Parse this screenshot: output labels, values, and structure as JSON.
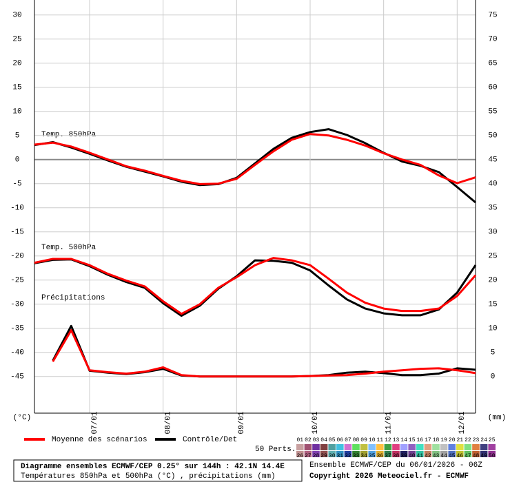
{
  "chart_data": {
    "type": "line",
    "annotations": [
      "Temp. 850hPa",
      "Temp. 500hPa",
      "Précipitations"
    ],
    "ylabel": "(°C)",
    "y2label": "(mm)",
    "x": [
      0,
      6,
      12,
      18,
      24,
      30,
      36,
      42,
      48,
      54,
      60,
      66,
      72,
      78,
      84,
      90,
      96,
      102,
      108,
      114,
      120,
      126,
      132,
      138,
      144
    ],
    "xlim": [
      0,
      144
    ],
    "xticks": [
      {
        "value": 18,
        "label": "07/01"
      },
      {
        "value": 42,
        "label": "08/01"
      },
      {
        "value": 66,
        "label": "09/01"
      },
      {
        "value": 90,
        "label": "10/01"
      },
      {
        "value": 114,
        "label": "11/01"
      },
      {
        "value": 138,
        "label": "12/01"
      }
    ],
    "ylim": [
      -52.6,
      33.1
    ],
    "yticks": [
      30,
      25,
      20,
      15,
      10,
      5,
      0,
      -5,
      -10,
      -15,
      -20,
      -25,
      -30,
      -35,
      -40,
      -45
    ],
    "y2lim": [
      -7.6,
      78.1
    ],
    "y2ticks": [
      75,
      70,
      65,
      60,
      55,
      50,
      45,
      40,
      35,
      30,
      25,
      20,
      15,
      10,
      5,
      0
    ],
    "grid": true,
    "legend": [
      {
        "name": "Moyenne des scénarios",
        "color": "#ff0000"
      },
      {
        "name": "Contrôle/Det",
        "color": "#000000"
      }
    ],
    "perturbations_title": "50 Perts.",
    "perturbations": [
      {
        "label": "01",
        "color": "#c8a0a0"
      },
      {
        "label": "02",
        "color": "#a05070"
      },
      {
        "label": "03",
        "color": "#7030a0"
      },
      {
        "label": "04",
        "color": "#804040"
      },
      {
        "label": "05",
        "color": "#50a0a0"
      },
      {
        "label": "06",
        "color": "#40c0e0"
      },
      {
        "label": "07",
        "color": "#d070d0"
      },
      {
        "label": "08",
        "color": "#60e060"
      },
      {
        "label": "09",
        "color": "#c0c040"
      },
      {
        "label": "10",
        "color": "#80c0ff"
      },
      {
        "label": "11",
        "color": "#ffc040"
      },
      {
        "label": "12",
        "color": "#40a040"
      },
      {
        "label": "13",
        "color": "#e04080"
      },
      {
        "label": "14",
        "color": "#a0a0ff"
      },
      {
        "label": "15",
        "color": "#9060c0"
      },
      {
        "label": "16",
        "color": "#40e0c0"
      },
      {
        "label": "17",
        "color": "#e0a080"
      },
      {
        "label": "18",
        "color": "#a0e0a0"
      },
      {
        "label": "19",
        "color": "#c0c0c0"
      },
      {
        "label": "20",
        "color": "#6080e0"
      },
      {
        "label": "21",
        "color": "#e0e040"
      },
      {
        "label": "22",
        "color": "#80e080"
      },
      {
        "label": "23",
        "color": "#e08040"
      },
      {
        "label": "24",
        "color": "#404080"
      },
      {
        "label": "25",
        "color": "#a040a0"
      },
      {
        "label": "26",
        "color": "#c09090"
      },
      {
        "label": "27",
        "color": "#b06080"
      },
      {
        "label": "28",
        "color": "#8040b0"
      },
      {
        "label": "29",
        "color": "#905050"
      },
      {
        "label": "30",
        "color": "#60b0b0"
      },
      {
        "label": "31",
        "color": "#3090c0"
      },
      {
        "label": "32",
        "color": "#2040a0"
      },
      {
        "label": "33",
        "color": "#308030"
      },
      {
        "label": "34",
        "color": "#a0a030"
      },
      {
        "label": "35",
        "color": "#50a0e0"
      },
      {
        "label": "36",
        "color": "#e0b030"
      },
      {
        "label": "37",
        "color": "#308050"
      },
      {
        "label": "38",
        "color": "#c03060"
      },
      {
        "label": "39",
        "color": "#202060"
      },
      {
        "label": "40",
        "color": "#704090"
      },
      {
        "label": "41",
        "color": "#30c0a0"
      },
      {
        "label": "42",
        "color": "#c08060"
      },
      {
        "label": "43",
        "color": "#80c080"
      },
      {
        "label": "44",
        "color": "#a0a0a0"
      },
      {
        "label": "45",
        "color": "#5070c0"
      },
      {
        "label": "46",
        "color": "#c0c030"
      },
      {
        "label": "47",
        "color": "#60c060"
      },
      {
        "label": "48",
        "color": "#c06030"
      },
      {
        "label": "49",
        "color": "#303070"
      },
      {
        "label": "50",
        "color": "#903090"
      }
    ],
    "panels": [
      {
        "axis": "y",
        "mean": [
          3.1,
          3.5,
          2.7,
          1.4,
          0,
          -1.4,
          -2.3,
          -3.4,
          -4.4,
          -5.1,
          -5,
          -4,
          -1.1,
          1.7,
          4.1,
          5.3,
          5,
          4.1,
          2.9,
          1.3,
          0,
          -1.1,
          -3.3,
          -4.9,
          -3.7
        ],
        "control": [
          3.0,
          3.6,
          2.5,
          1.2,
          -0.2,
          -1.5,
          -2.5,
          -3.5,
          -4.6,
          -5.3,
          -5.1,
          -3.8,
          -0.8,
          2.2,
          4.5,
          5.7,
          6.3,
          5.1,
          3.4,
          1.4,
          -0.4,
          -1.3,
          -2.6,
          -5.7,
          -8.9
        ]
      },
      {
        "axis": "y",
        "mean": [
          -21.4,
          -20.6,
          -20.6,
          -21.9,
          -23.7,
          -25.1,
          -26.3,
          -29.4,
          -32,
          -30,
          -26.6,
          -24.4,
          -21.9,
          -20.4,
          -20.9,
          -21.9,
          -24.7,
          -27.6,
          -29.7,
          -30.9,
          -31.4,
          -31.4,
          -30.9,
          -28.3,
          -24
        ],
        "control": [
          -21.5,
          -20.8,
          -20.7,
          -22.1,
          -23.9,
          -25.4,
          -26.6,
          -29.8,
          -32.4,
          -30.3,
          -26.8,
          -24.2,
          -20.9,
          -21,
          -21.4,
          -23,
          -26.1,
          -29,
          -30.9,
          -31.9,
          -32.3,
          -32.3,
          -31.1,
          -27.6,
          -21.9
        ]
      },
      {
        "axis": "y2",
        "mean": [
          null,
          3.1,
          9.6,
          1.3,
          0.9,
          0.6,
          1,
          1.9,
          0.3,
          0,
          0,
          0,
          0,
          0,
          0,
          0.1,
          0.2,
          0.3,
          0.6,
          1,
          1.3,
          1.6,
          1.7,
          1.3,
          0.7
        ],
        "control": [
          null,
          3.3,
          10.5,
          1.2,
          0.8,
          0.5,
          0.9,
          1.6,
          0.2,
          0,
          0,
          0,
          0,
          0,
          0,
          0.1,
          0.3,
          0.8,
          1,
          0.7,
          0.3,
          0.3,
          0.6,
          1.7,
          1.4
        ]
      }
    ]
  },
  "footer": {
    "title": "Diagramme ensembles ECMWF/CEP 0.25° sur 144h : 42.1N 14.4E",
    "subtitle": "Températures 850hPa et 500hPa (°C) , précipitations (mm)",
    "run": "Ensemble ECMWF/CEP du 06/01/2026 - 06Z",
    "copyright": "Copyright 2026 Meteociel.fr - ECMWF"
  }
}
